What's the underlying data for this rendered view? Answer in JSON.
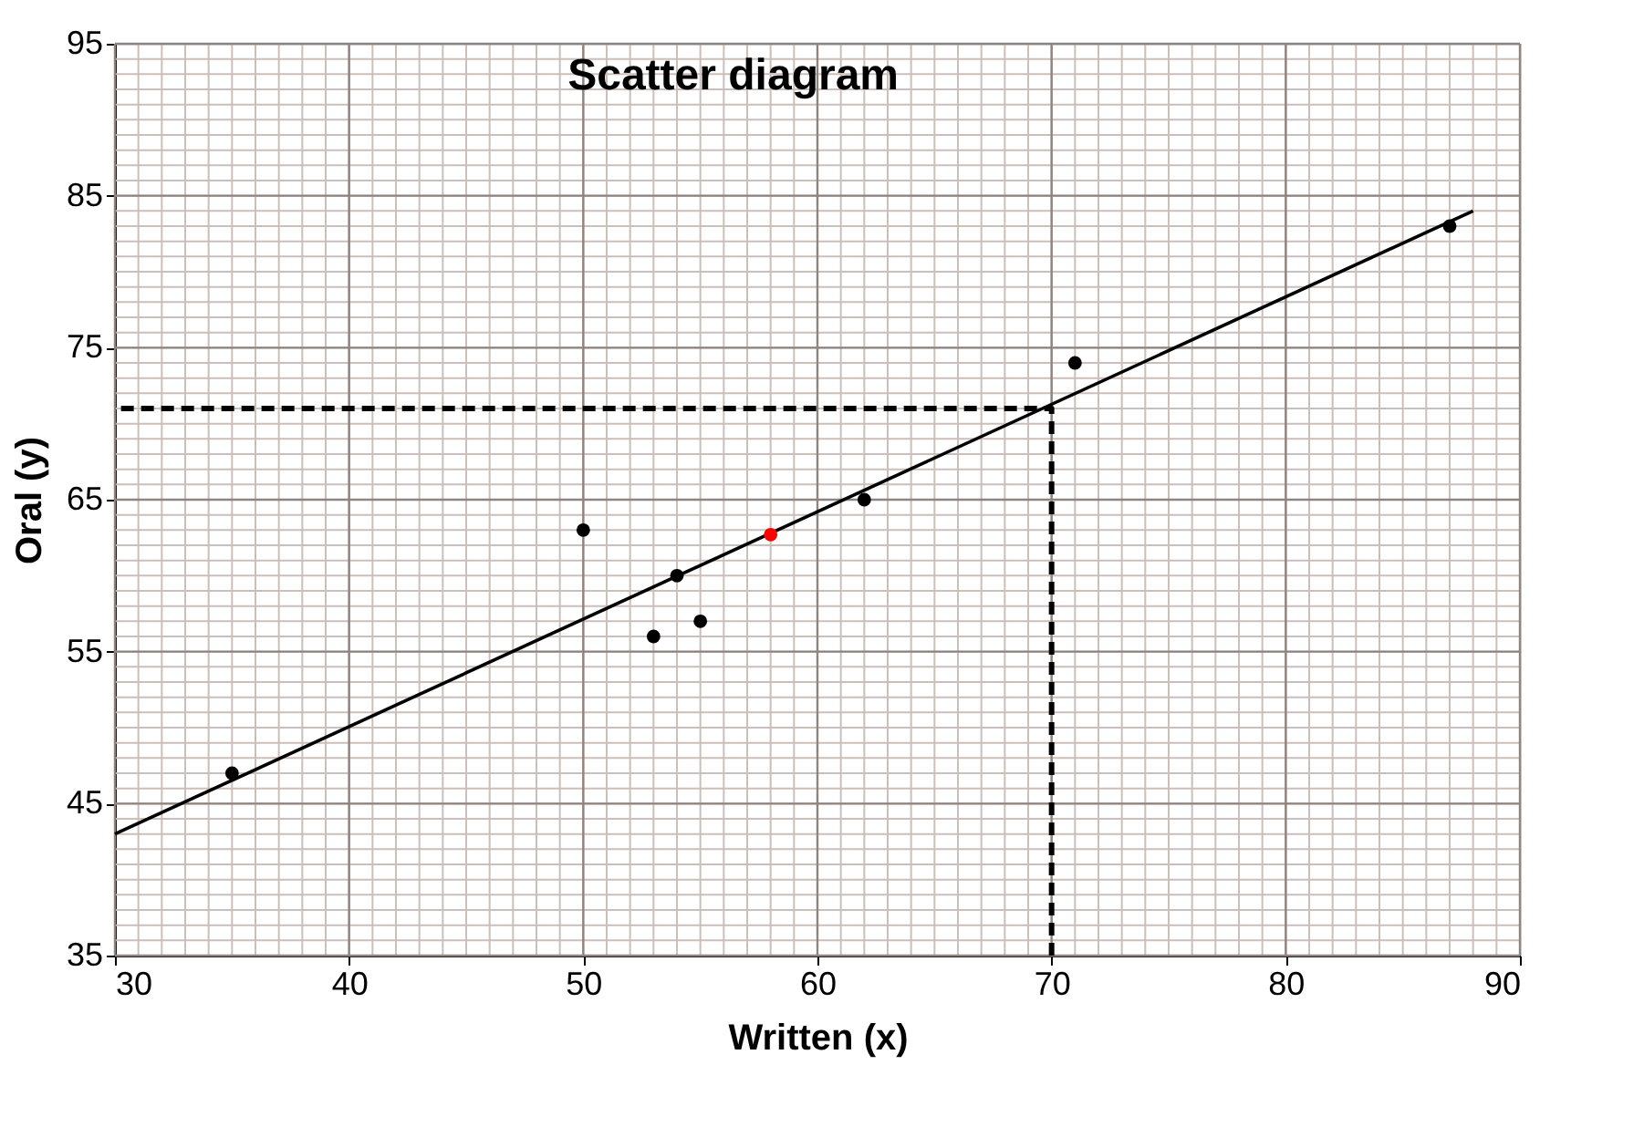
{
  "chart_data": {
    "type": "scatter",
    "title": "Scatter diagram",
    "xlabel": "Written (x)",
    "ylabel": "Oral (y)",
    "xlim": [
      30,
      90
    ],
    "xticks": [
      30,
      40,
      50,
      60,
      70,
      80,
      90
    ],
    "ylim": [
      35,
      95
    ],
    "yticks": [
      35,
      45,
      55,
      65,
      75,
      85,
      95
    ],
    "grid": true,
    "marker": "circle",
    "series": [
      {
        "type": "line",
        "color": "#000000",
        "x": [
          30,
          88
        ],
        "values": [
          43,
          84
        ],
        "line_style": "solid",
        "marker": "none"
      },
      {
        "type": "line",
        "color": "#000000",
        "x": [
          70,
          70,
          30
        ],
        "values": [
          35,
          71,
          71
        ],
        "line_style": "dashed",
        "marker": "none"
      },
      {
        "color": "#000000",
        "x": [
          35,
          50,
          53,
          54,
          55,
          62,
          71,
          87
        ],
        "values": [
          47,
          63,
          56,
          60,
          57,
          65,
          74,
          83
        ]
      },
      {
        "color": "#ff0000",
        "x": [
          58
        ],
        "values": [
          62.7
        ]
      }
    ]
  }
}
